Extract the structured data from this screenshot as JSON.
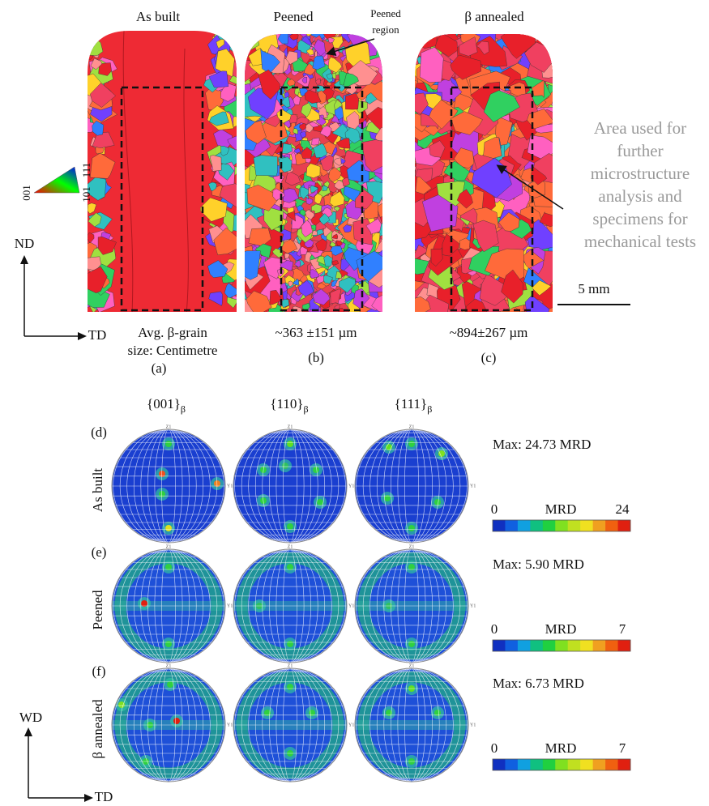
{
  "maps": {
    "titles": [
      "As built",
      "Peened",
      "β annealed"
    ],
    "peened_region": [
      "Peened",
      "region"
    ],
    "captions": [
      {
        "lines": [
          "Avg. β-grain",
          "size: Centimetre"
        ],
        "label": "(a)"
      },
      {
        "lines": [
          "~363 ±151 µm"
        ],
        "label": "(b)"
      },
      {
        "lines": [
          "~894±267 µm"
        ],
        "label": "(c)"
      }
    ],
    "side_note": [
      "Area used for",
      "further",
      "microstructure",
      "analysis and",
      "specimens for",
      "mechanical tests"
    ],
    "scale_bar": "5 mm",
    "axes": {
      "vertical": "ND",
      "horizontal": "TD"
    },
    "ipf_legend": [
      "001",
      "101",
      "111"
    ]
  },
  "pole_figures": {
    "headers": [
      {
        "text": "{001}",
        "sub": "β"
      },
      {
        "text": "{110}",
        "sub": "β"
      },
      {
        "text": "{111}",
        "sub": "β"
      }
    ],
    "pole_axes": {
      "top": "Z1",
      "right": "Y1"
    },
    "rows": [
      {
        "label": "(d)",
        "name": "As built",
        "max": "Max: 24.73 MRD",
        "scale": [
          "0",
          "MRD",
          "24"
        ]
      },
      {
        "label": "(e)",
        "name": "Peened",
        "max": "Max: 5.90 MRD",
        "scale": [
          "0",
          "MRD",
          "7"
        ]
      },
      {
        "label": "(f)",
        "name": "β annealed",
        "max": "Max: 6.73 MRD",
        "scale": [
          "0",
          "MRD",
          "7"
        ]
      }
    ],
    "axes": {
      "vertical": "WD",
      "horizontal": "TD"
    }
  }
}
